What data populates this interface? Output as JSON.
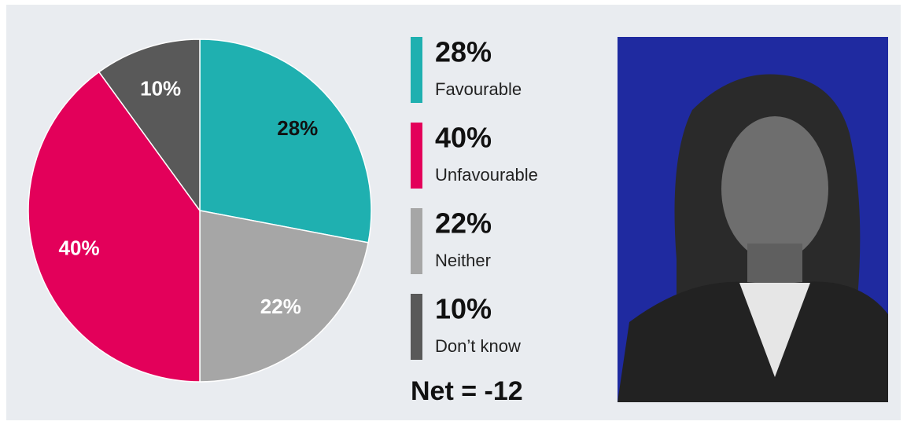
{
  "chart_data": {
    "type": "pie",
    "categories": [
      "Favourable",
      "Unfavourable",
      "Neither",
      "Don’t know"
    ],
    "values": [
      28,
      40,
      22,
      10
    ],
    "value_labels": [
      "28%",
      "40%",
      "22%",
      "10%"
    ],
    "colors": [
      "#1fb0b0",
      "#e3005a",
      "#a6a6a6",
      "#595959"
    ],
    "label_colors": [
      "#111111",
      "#ffffff",
      "#ffffff",
      "#ffffff"
    ],
    "slice_order": [
      0,
      2,
      1,
      3
    ],
    "annotation": "Net = -12"
  }
}
